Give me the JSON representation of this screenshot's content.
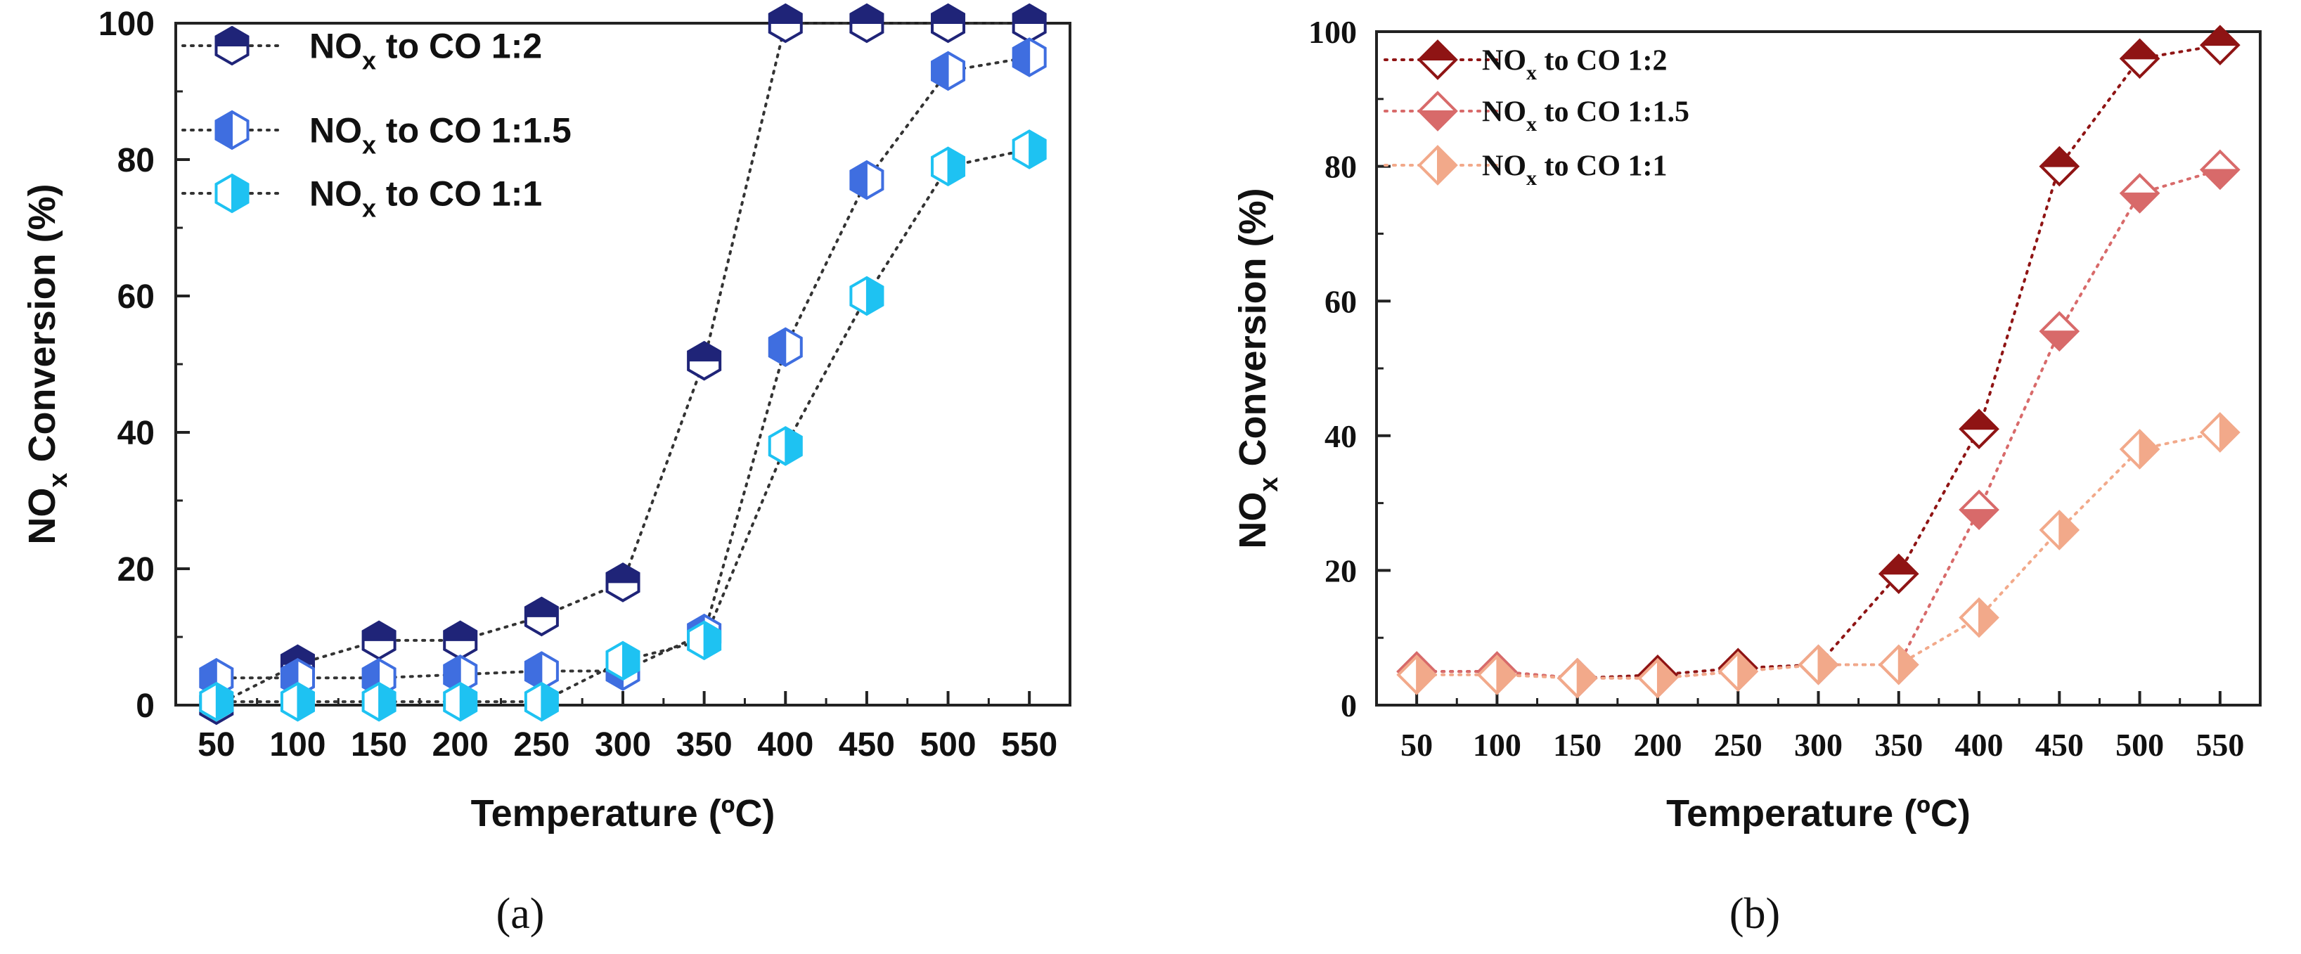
{
  "chart_data": [
    {
      "id": "a",
      "type": "scatter",
      "caption": "(a)",
      "xlabel": "Temperature (ºC)",
      "ylabel_main": "NO",
      "ylabel_sub": "x",
      "ylabel_rest": " Conversion (%)",
      "x": [
        50,
        100,
        150,
        200,
        250,
        300,
        350,
        400,
        450,
        500,
        550
      ],
      "xlim": [
        25,
        575
      ],
      "ylim": [
        0,
        100
      ],
      "xticks": [
        "50",
        "100",
        "150",
        "200",
        "250",
        "300",
        "350",
        "400",
        "450",
        "500",
        "550"
      ],
      "yticks": [
        "0",
        "20",
        "40",
        "60",
        "80",
        "100"
      ],
      "legend_position": "top-left",
      "series": [
        {
          "name_main": "NO",
          "name_sub": "x",
          "name_rest": " to CO 1:2",
          "color": "#1f2478",
          "marker": "hexagon-top-half",
          "values": [
            0,
            6,
            9.5,
            9.5,
            13,
            18,
            50.5,
            100,
            100,
            100,
            100
          ]
        },
        {
          "name_main": "NO",
          "name_sub": "x",
          "name_rest": " to CO 1:1.5",
          "color": "#3f6ee0",
          "marker": "hexagon-left-half",
          "values": [
            4,
            4,
            4,
            4.5,
            5,
            5,
            10.5,
            52.5,
            77,
            93,
            95
          ]
        },
        {
          "name_main": "NO",
          "name_sub": "x",
          "name_rest": " to CO 1:1",
          "color": "#1ec2f2",
          "marker": "hexagon-right-half",
          "values": [
            0.5,
            0.5,
            0.5,
            0.5,
            0.5,
            6.5,
            9.5,
            38,
            60,
            79,
            81.5
          ]
        }
      ]
    },
    {
      "id": "b",
      "type": "scatter",
      "caption": "(b)",
      "xlabel": "Temperature (ºC)",
      "ylabel_main": "NO",
      "ylabel_sub": "x",
      "ylabel_rest": " Conversion (%)",
      "x": [
        50,
        100,
        150,
        200,
        250,
        300,
        350,
        400,
        450,
        500,
        550
      ],
      "xlim": [
        25,
        575
      ],
      "ylim": [
        0,
        100
      ],
      "xticks": [
        "50",
        "100",
        "150",
        "200",
        "250",
        "300",
        "350",
        "400",
        "450",
        "500",
        "550"
      ],
      "yticks": [
        "0",
        "20",
        "40",
        "60",
        "80",
        "100"
      ],
      "legend_position": "top-left",
      "series": [
        {
          "name_main": "NO",
          "name_sub": "x",
          "name_rest": " to CO 1:2",
          "color": "#8f1414",
          "marker": "diamond-top-half",
          "values": [
            5,
            5,
            4,
            4.5,
            5.5,
            6,
            19.5,
            41,
            80,
            96,
            98
          ]
        },
        {
          "name_main": "NO",
          "name_sub": "x",
          "name_rest": " to CO 1:1.5",
          "color": "#d86a6a",
          "marker": "diamond-bottom-half",
          "values": [
            5,
            5,
            4,
            4,
            5,
            6,
            6,
            29,
            55.5,
            76,
            79.5
          ]
        },
        {
          "name_main": "NO",
          "name_sub": "x",
          "name_rest": " to CO 1:1",
          "color": "#f2a98a",
          "marker": "diamond-right-half",
          "values": [
            4.5,
            4.5,
            4,
            4,
            5,
            6,
            6,
            13,
            26,
            38,
            40.5
          ]
        }
      ]
    }
  ]
}
